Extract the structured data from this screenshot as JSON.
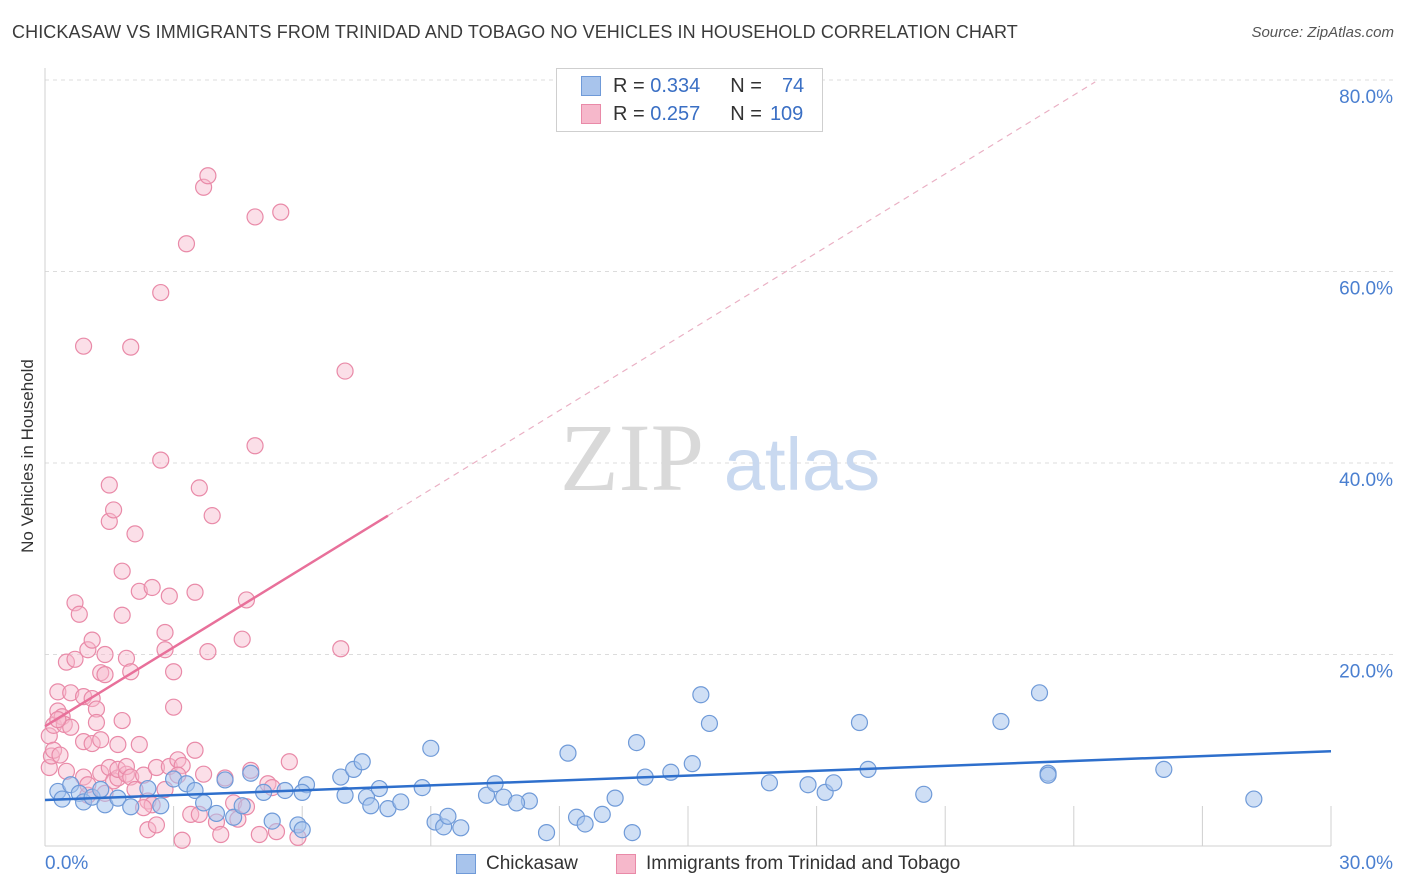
{
  "title": "CHICKASAW VS IMMIGRANTS FROM TRINIDAD AND TOBAGO NO VEHICLES IN HOUSEHOLD CORRELATION CHART",
  "source": "Source: ZipAtlas.com",
  "legend": {
    "r_label": "R =",
    "n_label": "N =",
    "series": [
      {
        "name": "Chickasaw",
        "r": "0.334",
        "n": "74"
      },
      {
        "name": "Immigrants from Trinidad and Tobago",
        "r": "0.257",
        "n": "109"
      }
    ]
  },
  "colors": {
    "blue_fill": "#a8c4ec",
    "blue_stroke": "#6f9ad8",
    "blue_line": "#2e6fcc",
    "pink_fill": "#f6b8cb",
    "pink_stroke": "#e98aa8",
    "pink_line": "#e8709a",
    "axis_label": "#4a7fd0",
    "grid": "#dcdcdc"
  },
  "chart_data": {
    "type": "scatter",
    "title": "CHICKASAW VS IMMIGRANTS FROM TRINIDAD AND TOBAGO NO VEHICLES IN HOUSEHOLD CORRELATION CHART",
    "xlabel": "",
    "ylabel": "No Vehicles in Household",
    "xlim": [
      0,
      30
    ],
    "ylim": [
      0,
      80
    ],
    "x_tick_labels": [
      "0.0%",
      "30.0%"
    ],
    "y_ticks": [
      20,
      40,
      60,
      80
    ],
    "y_tick_labels": [
      "20.0%",
      "40.0%",
      "60.0%",
      "80.0%"
    ],
    "watermark": {
      "zip": "ZIP",
      "atlas": "atlas"
    },
    "series": [
      {
        "name": "Chickasaw",
        "trend": {
          "x": [
            0,
            30
          ],
          "y": [
            4.8,
            9.9
          ]
        },
        "points": [
          [
            0.3,
            5.7
          ],
          [
            0.4,
            4.9
          ],
          [
            0.6,
            6.4
          ],
          [
            0.8,
            5.5
          ],
          [
            0.9,
            4.6
          ],
          [
            1.1,
            5.1
          ],
          [
            1.3,
            5.9
          ],
          [
            1.4,
            4.3
          ],
          [
            1.7,
            5.0
          ],
          [
            2.0,
            4.1
          ],
          [
            2.4,
            6.0
          ],
          [
            2.7,
            4.2
          ],
          [
            3.0,
            7.0
          ],
          [
            3.3,
            6.5
          ],
          [
            3.5,
            5.8
          ],
          [
            3.7,
            4.5
          ],
          [
            4.0,
            3.4
          ],
          [
            4.2,
            6.9
          ],
          [
            4.4,
            3.0
          ],
          [
            4.6,
            4.2
          ],
          [
            4.8,
            7.6
          ],
          [
            5.1,
            5.6
          ],
          [
            5.3,
            2.6
          ],
          [
            5.6,
            5.8
          ],
          [
            5.9,
            2.2
          ],
          [
            6.1,
            6.4
          ],
          [
            6.0,
            5.6
          ],
          [
            6.9,
            7.2
          ],
          [
            7.0,
            5.3
          ],
          [
            7.2,
            8.0
          ],
          [
            7.4,
            8.8
          ],
          [
            7.5,
            5.1
          ],
          [
            7.6,
            4.2
          ],
          [
            7.8,
            6.0
          ],
          [
            8.0,
            3.9
          ],
          [
            8.3,
            4.6
          ],
          [
            8.8,
            6.1
          ],
          [
            9.0,
            10.2
          ],
          [
            9.1,
            2.5
          ],
          [
            9.3,
            2.0
          ],
          [
            9.4,
            3.1
          ],
          [
            9.7,
            1.9
          ],
          [
            10.3,
            5.3
          ],
          [
            10.5,
            6.5
          ],
          [
            10.7,
            5.1
          ],
          [
            11.3,
            4.7
          ],
          [
            11.7,
            1.4
          ],
          [
            12.2,
            9.7
          ],
          [
            12.4,
            3.0
          ],
          [
            12.6,
            2.3
          ],
          [
            13.0,
            3.3
          ],
          [
            13.3,
            5.0
          ],
          [
            13.7,
            1.4
          ],
          [
            13.8,
            10.8
          ],
          [
            14.0,
            7.2
          ],
          [
            14.6,
            7.7
          ],
          [
            15.1,
            8.6
          ],
          [
            15.3,
            15.8
          ],
          [
            15.5,
            12.8
          ],
          [
            16.9,
            6.6
          ],
          [
            17.8,
            6.4
          ],
          [
            18.2,
            5.6
          ],
          [
            18.4,
            6.6
          ],
          [
            19.0,
            12.9
          ],
          [
            19.2,
            8.0
          ],
          [
            20.5,
            5.4
          ],
          [
            22.3,
            13.0
          ],
          [
            23.4,
            7.6
          ],
          [
            23.2,
            16.0
          ],
          [
            23.4,
            7.4
          ],
          [
            26.1,
            8.0
          ],
          [
            28.2,
            4.9
          ],
          [
            6.0,
            1.7
          ],
          [
            11.0,
            4.5
          ]
        ]
      },
      {
        "name": "Immigrants from Trinidad and Tobago",
        "trend": {
          "x": [
            0,
            8
          ],
          "y": [
            12.5,
            34.5
          ]
        },
        "trend_ext": {
          "x": [
            8,
            24.5
          ],
          "y": [
            34.5,
            79.8
          ]
        },
        "points": [
          [
            0.1,
            8.2
          ],
          [
            0.1,
            11.5
          ],
          [
            0.15,
            9.4
          ],
          [
            0.2,
            12.6
          ],
          [
            0.2,
            10.0
          ],
          [
            0.3,
            14.1
          ],
          [
            0.3,
            16.1
          ],
          [
            0.35,
            9.5
          ],
          [
            0.4,
            13.5
          ],
          [
            0.45,
            12.7
          ],
          [
            0.5,
            19.2
          ],
          [
            0.5,
            7.8
          ],
          [
            0.6,
            16.0
          ],
          [
            0.6,
            12.4
          ],
          [
            0.7,
            25.4
          ],
          [
            0.7,
            19.5
          ],
          [
            0.8,
            24.2
          ],
          [
            0.9,
            15.6
          ],
          [
            0.9,
            7.2
          ],
          [
            0.9,
            10.9
          ],
          [
            1.0,
            20.5
          ],
          [
            1.0,
            5.3
          ],
          [
            1.1,
            21.5
          ],
          [
            1.1,
            15.4
          ],
          [
            1.1,
            10.7
          ],
          [
            1.2,
            14.3
          ],
          [
            1.2,
            12.9
          ],
          [
            1.3,
            7.6
          ],
          [
            1.3,
            11.1
          ],
          [
            1.3,
            18.1
          ],
          [
            1.4,
            5.5
          ],
          [
            1.4,
            20.0
          ],
          [
            1.5,
            8.2
          ],
          [
            1.5,
            33.9
          ],
          [
            1.5,
            37.7
          ],
          [
            1.6,
            6.8
          ],
          [
            1.6,
            35.1
          ],
          [
            1.7,
            10.6
          ],
          [
            1.7,
            7.1
          ],
          [
            1.7,
            8.0
          ],
          [
            1.8,
            28.7
          ],
          [
            1.8,
            24.1
          ],
          [
            1.8,
            13.1
          ],
          [
            1.9,
            7.5
          ],
          [
            1.9,
            8.3
          ],
          [
            1.9,
            19.6
          ],
          [
            2.0,
            18.2
          ],
          [
            2.0,
            7.2
          ],
          [
            2.0,
            52.1
          ],
          [
            2.1,
            32.6
          ],
          [
            2.1,
            5.9
          ],
          [
            2.2,
            26.6
          ],
          [
            2.2,
            10.6
          ],
          [
            2.3,
            7.4
          ],
          [
            2.4,
            4.7
          ],
          [
            2.4,
            1.7
          ],
          [
            2.5,
            4.3
          ],
          [
            2.5,
            27.0
          ],
          [
            2.6,
            2.2
          ],
          [
            2.6,
            8.2
          ],
          [
            2.7,
            57.8
          ],
          [
            2.7,
            40.3
          ],
          [
            2.8,
            20.5
          ],
          [
            2.8,
            22.3
          ],
          [
            2.9,
            26.1
          ],
          [
            2.9,
            8.3
          ],
          [
            3.0,
            18.2
          ],
          [
            3.0,
            14.5
          ],
          [
            3.1,
            9.0
          ],
          [
            3.2,
            0.6
          ],
          [
            3.2,
            8.4
          ],
          [
            3.3,
            62.9
          ],
          [
            3.4,
            3.3
          ],
          [
            3.5,
            26.5
          ],
          [
            3.5,
            10.0
          ],
          [
            3.6,
            3.3
          ],
          [
            3.6,
            37.4
          ],
          [
            3.7,
            68.8
          ],
          [
            3.7,
            7.5
          ],
          [
            3.8,
            70.0
          ],
          [
            3.8,
            20.3
          ],
          [
            3.9,
            34.5
          ],
          [
            4.0,
            2.5
          ],
          [
            4.1,
            1.2
          ],
          [
            4.2,
            7.1
          ],
          [
            4.4,
            4.5
          ],
          [
            4.5,
            2.8
          ],
          [
            4.6,
            21.6
          ],
          [
            4.7,
            25.7
          ],
          [
            4.7,
            4.1
          ],
          [
            4.8,
            7.9
          ],
          [
            4.9,
            65.7
          ],
          [
            4.9,
            41.8
          ],
          [
            5.0,
            1.2
          ],
          [
            5.2,
            6.5
          ],
          [
            5.3,
            6.1
          ],
          [
            5.4,
            1.5
          ],
          [
            5.5,
            66.2
          ],
          [
            5.7,
            8.8
          ],
          [
            5.9,
            0.9
          ],
          [
            6.9,
            20.6
          ],
          [
            7.0,
            49.6
          ],
          [
            0.9,
            52.2
          ],
          [
            1.4,
            17.9
          ],
          [
            0.3,
            13.2
          ],
          [
            1.0,
            6.4
          ],
          [
            2.3,
            4.0
          ],
          [
            2.8,
            5.9
          ],
          [
            3.1,
            7.4
          ]
        ]
      }
    ]
  }
}
